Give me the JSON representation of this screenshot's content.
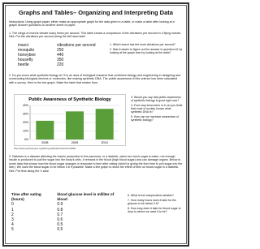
{
  "title": "Graphs and Tables– Organizing and Interpreting Data",
  "instructions": "Instructions: Using graph paper, either make an appropriate graph for the data given in a table, or make a table after looking at a graph! Answer questions on another sheet of paper.",
  "sections": [
    {
      "text": "1. The wings of insects vibrate many times per second. This table shows a comparison of the vibrations per second in 4 flying insects. Hint: Put the vibrations per second along the left hand side!",
      "table": {
        "header": [
          "insect",
          "vibrations per second"
        ],
        "rows": [
          [
            "mosquito",
            250
          ],
          [
            "honeybee",
            440
          ],
          [
            "housefly",
            350
          ],
          [
            "beetle",
            220
          ]
        ]
      },
      "questions": [
        "1. Which insect has the most vibrations per second?",
        "2. Was it easier to figure out the answer to question #1 by looking at the graph than by looking at the table?"
      ]
    },
    {
      "text": "2. Do you know what synthetic biology is? It is an area of biological research that combines biology and engineering in designing and constructing biological devices or molecules, like making synthetic DNA. The public awareness of this science has been calculated with a survey. Here is the bar graph. Make the table that relates from.",
      "chart": {
        "type": "bar",
        "title": "Public Awareness of Synthetic Biology",
        "categories": [
          "2008",
          "2009",
          "2010"
        ],
        "values": [
          22,
          33,
          36
        ],
        "color": "#5a9e3a",
        "ylim": [
          0,
          40
        ],
        "yticks": [
          {
            "value": 0,
            "label": "0%"
          },
          {
            "value": 10,
            "label": "10%"
          },
          {
            "value": 20,
            "label": "20%"
          },
          {
            "value": 30,
            "label": "30%"
          },
          {
            "value": 40,
            "label": "40%"
          }
        ],
        "grid": true
      },
      "source": "http://www.synbioproject.org/library/publications/archive/6456/",
      "questions": [
        "3. Would you say that public awareness of synthetic biology is good right now?",
        "4. From any trend seen in it, do you think that most of society knows what synthetic DNA is?",
        "5. How can we increase awareness of synthetic biology?"
      ]
    },
    {
      "text": "3. Diabetes is a disease affecting the insulin production in the pancreas. In a diabetic, when too much sugar is eaten, not enough insulin is produced to pull the sugar into the body's cells. It remains in the blood (high blood sugar) and can damage organs. Below is some data that shows how the blood sugar changes in response to time after eating (which is giving the liver time to pull sugar into the liver). We want the blood sugar to be below 0.6 if possible. Make a line graph to show the effect of time on blood sugar in a diabetic. Hint: Put time along the X axis!",
      "table": {
        "header": [
          "Time after eating (hours)",
          "blood glucose level in ml/liter of blood"
        ],
        "rows": [
          [
            0,
            0.9
          ],
          [
            1,
            0.8
          ],
          [
            2,
            0.7
          ],
          [
            3,
            0.6
          ],
          [
            4,
            0.5
          ],
          [
            5,
            0.5
          ]
        ]
      },
      "questions": [
        "6. What is the independent variable?",
        "7. How many hours does it take for the glucose to be below 0.6?",
        "8. How long does it take for blood sugar to drop to where we want it to be?"
      ]
    }
  ]
}
